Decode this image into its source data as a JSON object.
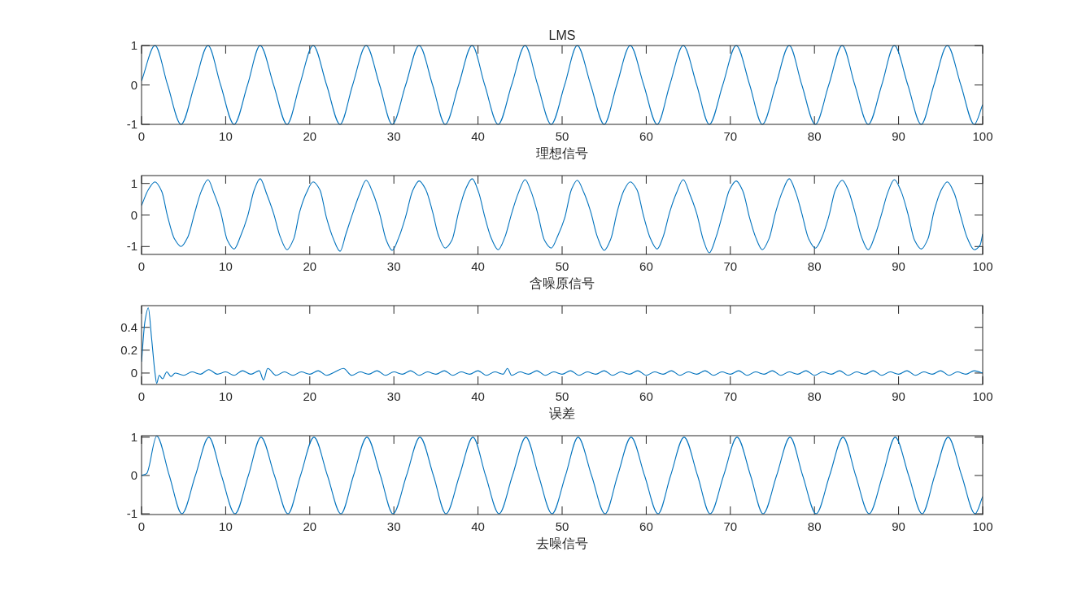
{
  "chart_data": [
    {
      "type": "line",
      "title": "LMS",
      "xlabel": "理想信号",
      "xlim": [
        0,
        100
      ],
      "xticks": [
        0,
        10,
        20,
        30,
        40,
        50,
        60,
        70,
        80,
        90,
        100
      ],
      "ylim": [
        -1,
        1
      ],
      "yticks": [
        -1,
        0,
        1
      ],
      "grid": false,
      "marker": "none",
      "line_style": "solid",
      "series": [
        {
          "color": "#0072bd",
          "x": [
            0,
            1.6,
            3.1,
            4.7,
            6.3,
            7.9,
            9.4,
            11.0,
            12.6,
            14.1,
            15.7,
            17.3,
            18.8,
            20.4,
            22.0,
            23.6,
            25.1,
            26.7,
            28.3,
            29.8,
            31.4,
            33.0,
            34.6,
            36.1,
            37.7,
            39.3,
            40.8,
            42.4,
            44.0,
            45.6,
            47.1,
            48.7,
            50.3,
            51.8,
            53.4,
            55.0,
            56.5,
            58.1,
            59.7,
            61.3,
            62.8,
            64.4,
            66.0,
            67.5,
            69.1,
            70.7,
            72.3,
            73.8,
            75.4,
            77.0,
            78.5,
            80.1,
            81.7,
            83.3,
            84.8,
            86.4,
            88.0,
            89.5,
            91.1,
            92.7,
            94.2,
            95.8,
            97.4,
            99.0,
            100
          ],
          "values": [
            0.1,
            1,
            0,
            -1,
            0,
            1,
            0,
            -1,
            0,
            1,
            0,
            -1,
            0,
            1,
            0,
            -1,
            0,
            1,
            0,
            -1,
            0,
            1,
            0,
            -1,
            0,
            1,
            0,
            -1,
            0,
            1,
            0,
            -1,
            0,
            1,
            0,
            -1,
            0,
            1,
            0,
            -1,
            0,
            1,
            0,
            -1,
            0,
            1,
            0,
            -1,
            0,
            1,
            0,
            -1,
            0,
            1,
            0,
            -1,
            0,
            1,
            0,
            -1,
            0,
            1,
            0,
            -1,
            -0.5
          ]
        }
      ]
    },
    {
      "type": "line",
      "xlabel": "含噪原信号",
      "xlim": [
        0,
        100
      ],
      "xticks": [
        0,
        10,
        20,
        30,
        40,
        50,
        60,
        70,
        80,
        90,
        100
      ],
      "ylim": [
        -1.25,
        1.25
      ],
      "yticks": [
        -1,
        0,
        1
      ],
      "grid": false,
      "marker": "none",
      "line_style": "solid",
      "series": [
        {
          "color": "#0072bd",
          "x": [
            0,
            0.8,
            1.6,
            2.4,
            3.1,
            3.9,
            4.7,
            5.5,
            6.3,
            7.1,
            7.9,
            8.6,
            9.4,
            10.2,
            11.0,
            11.8,
            12.6,
            13.4,
            14.1,
            14.9,
            15.7,
            16.5,
            17.3,
            18.1,
            18.8,
            19.6,
            20.4,
            21.2,
            22.0,
            22.8,
            23.6,
            24.3,
            25.1,
            25.9,
            26.7,
            27.5,
            28.3,
            29.1,
            29.8,
            30.6,
            31.4,
            32.2,
            33.0,
            33.8,
            34.6,
            35.3,
            36.1,
            36.9,
            37.7,
            38.5,
            39.3,
            40.1,
            40.8,
            41.6,
            42.4,
            43.2,
            44.0,
            44.8,
            45.6,
            46.3,
            47.1,
            47.9,
            48.7,
            49.5,
            50.3,
            51.1,
            51.8,
            52.6,
            53.4,
            54.2,
            55.0,
            55.8,
            56.5,
            57.3,
            58.1,
            58.9,
            59.7,
            60.5,
            61.3,
            62.0,
            62.8,
            63.6,
            64.4,
            65.2,
            66.0,
            66.8,
            67.5,
            68.3,
            69.1,
            69.9,
            70.7,
            71.5,
            72.3,
            73.0,
            73.8,
            74.6,
            75.4,
            76.2,
            77.0,
            77.8,
            78.5,
            79.3,
            80.1,
            80.9,
            81.7,
            82.5,
            83.3,
            84.0,
            84.8,
            85.6,
            86.4,
            87.2,
            88.0,
            88.7,
            89.5,
            90.3,
            91.1,
            91.9,
            92.7,
            93.5,
            94.2,
            95.0,
            95.8,
            96.6,
            97.4,
            98.2,
            99.0,
            99.7,
            100
          ],
          "values": [
            0.3,
            0.8,
            1.05,
            0.75,
            -0.05,
            -0.75,
            -1.0,
            -0.7,
            0.05,
            0.75,
            1.12,
            0.7,
            0.1,
            -0.8,
            -1.08,
            -0.65,
            -0.05,
            0.8,
            1.15,
            0.65,
            0.05,
            -0.7,
            -1.1,
            -0.75,
            0.1,
            0.7,
            1.05,
            0.8,
            -0.1,
            -0.75,
            -1.15,
            -0.6,
            0.05,
            0.65,
            1.1,
            0.7,
            0.05,
            -0.8,
            -1.12,
            -0.7,
            -0.05,
            0.75,
            1.08,
            0.8,
            0.1,
            -0.65,
            -1.05,
            -0.8,
            0.1,
            0.8,
            1.15,
            0.7,
            -0.05,
            -0.75,
            -1.1,
            -0.7,
            0.05,
            0.7,
            1.12,
            0.75,
            0.05,
            -0.8,
            -1.05,
            -0.65,
            -0.1,
            0.8,
            1.1,
            0.7,
            0.1,
            -0.7,
            -1.12,
            -0.75,
            0.05,
            0.75,
            1.05,
            0.8,
            -0.05,
            -0.75,
            -1.08,
            -0.7,
            0.1,
            0.7,
            1.12,
            0.65,
            0.05,
            -0.8,
            -1.2,
            -0.7,
            0.05,
            0.8,
            1.08,
            0.75,
            -0.1,
            -0.7,
            -1.1,
            -0.75,
            0.1,
            0.75,
            1.15,
            0.7,
            0.05,
            -0.75,
            -1.05,
            -0.7,
            -0.05,
            0.8,
            1.1,
            0.8,
            0.1,
            -0.7,
            -1.1,
            -0.65,
            0.05,
            0.7,
            1.12,
            0.75,
            0.05,
            -0.8,
            -1.08,
            -0.75,
            0.1,
            0.75,
            1.05,
            0.7,
            -0.05,
            -0.75,
            -1.1,
            -0.95,
            -0.6
          ]
        }
      ]
    },
    {
      "type": "line",
      "xlabel": "误差",
      "xlim": [
        0,
        100
      ],
      "xticks": [
        0,
        10,
        20,
        30,
        40,
        50,
        60,
        70,
        80,
        90,
        100
      ],
      "ylim": [
        -0.1,
        0.59
      ],
      "yticks": [
        0,
        0.2,
        0.4
      ],
      "grid": false,
      "marker": "none",
      "line_style": "solid",
      "series": [
        {
          "color": "#0072bd",
          "x": [
            0,
            0.4,
            0.8,
            1.2,
            1.6,
            1.8,
            2.1,
            2.5,
            3.0,
            3.5,
            4,
            5,
            6,
            7,
            8,
            9,
            10,
            11,
            12,
            13,
            14,
            14.5,
            15,
            16,
            17,
            18,
            19,
            20,
            21,
            22,
            23,
            24,
            25,
            26,
            27,
            28,
            29,
            30,
            31,
            32,
            33,
            34,
            35,
            36,
            37,
            38,
            39,
            40,
            41,
            42,
            43,
            43.5,
            44,
            45,
            46,
            47,
            48,
            49,
            50,
            51,
            52,
            53,
            54,
            55,
            56,
            57,
            58,
            59,
            60,
            61,
            62,
            63,
            64,
            65,
            66,
            67,
            68,
            69,
            70,
            71,
            72,
            73,
            74,
            75,
            76,
            77,
            78,
            79,
            80,
            81,
            82,
            83,
            84,
            85,
            86,
            87,
            88,
            89,
            90,
            91,
            92,
            93,
            94,
            95,
            96,
            97,
            98,
            99,
            100
          ],
          "values": [
            0.1,
            0.45,
            0.57,
            0.3,
            0.0,
            -0.09,
            -0.02,
            -0.05,
            0.01,
            -0.03,
            0.0,
            -0.02,
            0.01,
            -0.01,
            0.03,
            -0.01,
            0.01,
            -0.02,
            0.02,
            -0.01,
            0.02,
            -0.06,
            0.04,
            -0.02,
            0.01,
            -0.02,
            0.01,
            -0.01,
            0.02,
            -0.02,
            0.01,
            0.04,
            -0.02,
            0.01,
            -0.01,
            0.02,
            -0.02,
            0.01,
            -0.01,
            0.02,
            -0.02,
            0.01,
            -0.01,
            0.02,
            -0.02,
            0.01,
            -0.01,
            0.02,
            -0.02,
            0.01,
            -0.01,
            0.04,
            -0.02,
            0.01,
            -0.01,
            0.02,
            -0.02,
            0.01,
            -0.01,
            0.02,
            -0.02,
            0.01,
            -0.01,
            0.02,
            -0.02,
            0.01,
            -0.01,
            0.02,
            -0.02,
            0.01,
            -0.01,
            0.02,
            -0.02,
            0.01,
            -0.01,
            0.02,
            -0.02,
            0.01,
            -0.01,
            0.02,
            -0.02,
            0.01,
            -0.01,
            0.02,
            -0.02,
            0.01,
            -0.01,
            0.02,
            -0.02,
            0.01,
            -0.01,
            0.02,
            -0.02,
            0.01,
            -0.01,
            0.02,
            -0.02,
            0.01,
            -0.01,
            0.02,
            -0.02,
            0.01,
            -0.01,
            0.02,
            -0.02,
            0.01,
            -0.01,
            0.02,
            0.0
          ]
        }
      ]
    },
    {
      "type": "line",
      "xlabel": "去噪信号",
      "xlim": [
        0,
        100
      ],
      "xticks": [
        0,
        10,
        20,
        30,
        40,
        50,
        60,
        70,
        80,
        90,
        100
      ],
      "ylim": [
        -1.02,
        1.04
      ],
      "yticks": [
        -1,
        0,
        1
      ],
      "grid": false,
      "marker": "none",
      "line_style": "solid",
      "series": [
        {
          "color": "#0072bd",
          "x": [
            0,
            0.6,
            1.8,
            3.3,
            4.8,
            6.4,
            8.0,
            9.5,
            11.1,
            12.7,
            14.2,
            15.8,
            17.4,
            18.9,
            20.5,
            22.1,
            23.7,
            25.2,
            26.8,
            28.4,
            29.9,
            31.5,
            33.1,
            34.7,
            36.2,
            37.8,
            39.4,
            40.9,
            42.5,
            44.1,
            45.7,
            47.2,
            48.8,
            50.4,
            51.9,
            53.5,
            55.1,
            56.6,
            58.2,
            59.8,
            61.4,
            62.9,
            64.5,
            66.1,
            67.6,
            69.2,
            70.8,
            72.4,
            73.9,
            75.5,
            77.1,
            78.6,
            80.2,
            81.8,
            83.4,
            84.9,
            86.5,
            88.1,
            89.6,
            91.2,
            92.8,
            94.3,
            95.9,
            97.5,
            99.1,
            100
          ],
          "values": [
            0,
            0.05,
            1.03,
            0,
            -1,
            0,
            1,
            0,
            -1,
            0,
            1,
            0,
            -1,
            0,
            1,
            0,
            -1,
            0,
            1,
            0,
            -1,
            0,
            1,
            0,
            -1,
            0,
            1,
            0,
            -1,
            0,
            1,
            0,
            -1,
            0,
            1,
            0,
            -1,
            0,
            1,
            0,
            -1,
            0,
            1,
            0,
            -1,
            0,
            1,
            0,
            -1,
            0,
            1,
            0,
            -1,
            0,
            1,
            0,
            -1,
            0,
            1,
            0,
            -1,
            0,
            1,
            0,
            -1,
            -0.55
          ]
        }
      ]
    }
  ]
}
